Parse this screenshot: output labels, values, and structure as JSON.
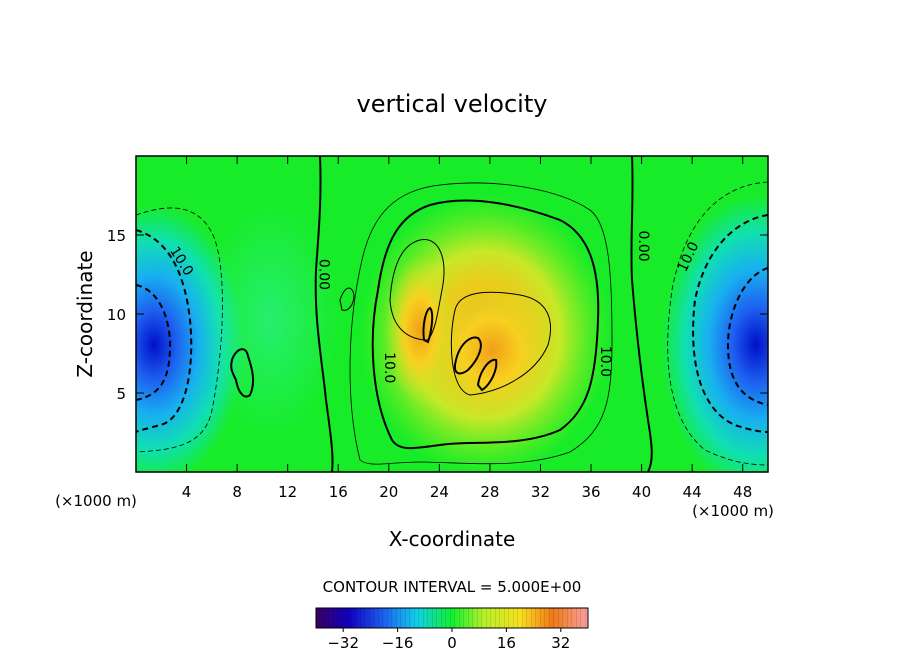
{
  "chart_data": {
    "type": "heatmap",
    "title": "vertical velocity",
    "xlabel": "X-coordinate",
    "ylabel": "Z-coordinate",
    "x_unit_left": "(×1000 m)",
    "x_unit_right": "(×1000 m)",
    "xlim": [
      0,
      50
    ],
    "ylim": [
      0,
      20
    ],
    "xticks": [
      4,
      8,
      12,
      16,
      20,
      24,
      28,
      32,
      36,
      40,
      44,
      48
    ],
    "yticks": [
      5,
      10,
      15
    ],
    "contour_interval_text": "CONTOUR INTERVAL = 5.000E+00",
    "contour_interval": 5.0,
    "contour_labels": [
      {
        "text": "10.0",
        "x": 3.3,
        "z": 13.2,
        "angle": 58
      },
      {
        "text": "0.00",
        "x": 14.5,
        "z": 12.5,
        "angle": 90
      },
      {
        "text": "10.0",
        "x": 19.7,
        "z": 6.6,
        "angle": 90
      },
      {
        "text": "10.0",
        "x": 36.8,
        "z": 7.0,
        "angle": 90
      },
      {
        "text": "0.00",
        "x": 39.8,
        "z": 14.3,
        "angle": 90
      },
      {
        "text": "10.0",
        "x": 44.0,
        "z": 13.5,
        "angle": -65
      }
    ],
    "colorbar": {
      "range": [
        -40,
        40
      ],
      "tick_values": [
        -32,
        -16,
        0,
        16,
        32
      ],
      "tick_labels": [
        "−32",
        "−16",
        "0",
        "16",
        "32"
      ]
    },
    "field_features": [
      {
        "sign": "negative",
        "x": 1.3,
        "z": 8.0,
        "peak": -32
      },
      {
        "sign": "negative",
        "x": 48.8,
        "z": 8.0,
        "peak": -32
      },
      {
        "sign": "positive",
        "x": 28.0,
        "z": 8.0,
        "peak": 18
      },
      {
        "sign": "positive",
        "x": 22.5,
        "z": 9.0,
        "peak": 15
      }
    ]
  }
}
